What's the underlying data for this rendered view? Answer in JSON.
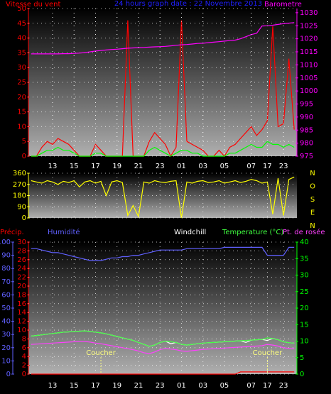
{
  "chart_data": [
    {
      "type": "line",
      "title": "24 hours graph date : 22 Novembre 2013",
      "ylabel": "Vitesse du vent",
      "y2label": "Barometre",
      "categories": [
        null,
        null,
        null,
        null,
        "13",
        null,
        null,
        null,
        "15",
        null,
        null,
        null,
        "17",
        null,
        null,
        null,
        "19",
        null,
        null,
        null,
        "21",
        null,
        null,
        null,
        "23",
        null,
        null,
        null,
        "01",
        null,
        null,
        null,
        "03",
        null,
        null,
        null,
        "05",
        null,
        null,
        null,
        null,
        "07",
        null,
        null,
        "17",
        null,
        null,
        "23",
        null,
        null
      ],
      "ylim": [
        0,
        50
      ],
      "yticks": [
        0,
        5,
        10,
        15,
        20,
        25,
        30,
        35,
        40,
        45,
        50
      ],
      "y2lim": [
        975,
        1031.6
      ],
      "y2ticks": [
        975,
        980,
        985,
        990,
        995,
        1000,
        1005,
        1010,
        1015,
        1020,
        1025,
        1030
      ],
      "grid": true,
      "axis_colors": {
        "y": "#ff0000",
        "y2": "#ff00ff"
      },
      "title_color": "#2020ff",
      "series": [
        {
          "color": "#ff0000",
          "values": [
            0,
            0,
            3,
            5,
            4,
            6,
            5,
            4,
            2,
            0,
            0,
            0,
            4,
            2,
            0,
            0,
            0,
            0,
            46,
            0,
            0,
            0,
            5,
            8,
            6,
            4,
            0,
            3,
            46,
            5,
            4,
            3,
            2,
            0,
            0,
            2,
            0,
            3,
            4,
            6,
            8,
            10,
            7,
            9,
            12,
            44,
            10,
            11,
            33,
            9
          ]
        },
        {
          "color": "#00ff00",
          "values": [
            0,
            0,
            1,
            2,
            2,
            3,
            2,
            2,
            1,
            0,
            0,
            0,
            1,
            1,
            0,
            0,
            0,
            0,
            0,
            0,
            0,
            0,
            2,
            3,
            2,
            1,
            0,
            1,
            2,
            2,
            1,
            1,
            0,
            0,
            0,
            0,
            0,
            1,
            1,
            2,
            3,
            4,
            3,
            3,
            5,
            4,
            4,
            3,
            4,
            3
          ]
        },
        {
          "color": "#ff00ff",
          "axis": "y2",
          "values": [
            1014.2,
            1014.2,
            1014.2,
            1014.2,
            1014.2,
            1014.2,
            1014.3,
            1014.3,
            1014.4,
            1014.5,
            1014.7,
            1015.0,
            1015.3,
            1015.5,
            1015.7,
            1015.9,
            1016.0,
            1016.2,
            1016.4,
            1016.5,
            1016.6,
            1016.7,
            1016.8,
            1016.9,
            1017.0,
            1017.1,
            1017.3,
            1017.5,
            1017.7,
            1017.8,
            1018.0,
            1018.2,
            1018.3,
            1018.5,
            1018.7,
            1018.9,
            1019.1,
            1019.3,
            1019.5,
            1020.0,
            1020.8,
            1021.6,
            1022.1,
            1024.9,
            1025.0,
            1025.2,
            1025.5,
            1025.8,
            1026.0,
            1026.2
          ]
        }
      ]
    },
    {
      "type": "line",
      "ylim": [
        0,
        360
      ],
      "yticks": [
        0,
        90,
        180,
        270,
        360
      ],
      "grid": true,
      "axis_colors": {
        "y": "#ffff00"
      },
      "compass": [
        "N",
        "O",
        "S",
        "E",
        "N"
      ],
      "series": [
        {
          "color": "#ffff00",
          "values": [
            300,
            290,
            280,
            300,
            290,
            270,
            295,
            285,
            300,
            250,
            290,
            300,
            280,
            295,
            180,
            290,
            300,
            285,
            20,
            100,
            10,
            290,
            280,
            300,
            290,
            285,
            295,
            300,
            0,
            290,
            280,
            295,
            300,
            285,
            290,
            300,
            280,
            290,
            300,
            285,
            295,
            310,
            300,
            280,
            290,
            30,
            320,
            20,
            310,
            330
          ]
        }
      ]
    },
    {
      "type": "line",
      "categories": [
        null,
        null,
        null,
        null,
        "13",
        null,
        null,
        null,
        "15",
        null,
        null,
        null,
        "17",
        null,
        null,
        null,
        "19",
        null,
        null,
        null,
        "21",
        null,
        null,
        null,
        "23",
        null,
        null,
        null,
        "01",
        null,
        null,
        null,
        "03",
        null,
        null,
        null,
        "05",
        null,
        null,
        null,
        null,
        "07",
        null,
        null,
        "17",
        null,
        null,
        "23",
        null,
        null
      ],
      "ylim": [
        0,
        30
      ],
      "yticks": [
        0,
        2,
        4,
        6,
        8,
        10,
        12,
        14,
        16,
        18,
        20,
        22,
        24,
        26,
        28,
        30
      ],
      "y3lim": [
        0,
        100
      ],
      "y3ticks": [
        0,
        10,
        20,
        30,
        40,
        50,
        60,
        70,
        80,
        90,
        100
      ],
      "y2lim": [
        0,
        40
      ],
      "y2ticks": [
        0,
        5,
        10,
        15,
        20,
        25,
        30,
        35,
        40
      ],
      "grid": true,
      "axis_colors": {
        "y": "#ff0000",
        "y2": "#00ff00",
        "y3": "#6060ff"
      },
      "annotations": [
        {
          "text": "Coucher",
          "x": 13
        },
        {
          "text": "Coucher",
          "x": 44
        }
      ],
      "series": [
        {
          "name": "Précip.",
          "color": "#ff0000",
          "values": [
            0,
            0,
            0,
            0,
            0,
            0,
            0,
            0,
            0,
            0,
            0,
            0,
            0,
            0,
            0,
            0,
            0,
            0,
            0,
            0,
            0,
            0,
            0,
            0,
            0,
            0,
            0,
            0,
            0,
            0,
            0,
            0,
            0,
            0,
            0,
            0,
            0,
            0,
            0,
            0.5,
            0.5,
            0.5,
            0.5,
            0.5,
            0.5,
            0.5,
            0.5,
            0.5,
            0.5,
            0.5
          ]
        },
        {
          "name": "Humidité",
          "color": "#6060ff",
          "axis": "y3",
          "values": [
            95,
            95,
            94,
            93,
            92,
            92,
            91,
            90,
            89,
            88,
            87,
            86,
            86,
            86,
            87,
            88,
            88,
            89,
            89,
            90,
            90,
            91,
            92,
            93,
            94,
            94,
            94,
            94,
            94,
            95,
            95,
            95,
            95,
            95,
            95,
            95,
            96,
            96,
            96,
            96,
            96,
            96,
            96,
            96,
            90,
            90,
            90,
            90,
            96,
            96
          ]
        },
        {
          "name": "Windchill",
          "color": "#ffffff",
          "axis": "y2",
          "values": [
            11.5,
            11.7,
            11.9,
            12.1,
            12.3,
            12.5,
            12.7,
            12.8,
            12.9,
            13.0,
            13.1,
            12.9,
            12.7,
            12.5,
            12.2,
            11.8,
            11.4,
            11.0,
            10.6,
            10.2,
            9.6,
            9.0,
            8.4,
            8.8,
            9.6,
            10.0,
            9.2,
            9.6,
            9.0,
            8.8,
            9.0,
            9.2,
            9.4,
            9.5,
            9.6,
            9.7,
            9.8,
            9.9,
            10.0,
            10.1,
            9.6,
            10.3,
            10.4,
            10.5,
            10.2,
            10.8,
            10.4,
            9.8,
            9.5,
            9.4
          ]
        },
        {
          "name": "Temperature (°C)",
          "color": "#40ff40",
          "axis": "y2",
          "values": [
            11.5,
            11.7,
            11.9,
            12.1,
            12.3,
            12.5,
            12.7,
            12.8,
            12.9,
            13.0,
            13.1,
            12.9,
            12.7,
            12.5,
            12.2,
            11.8,
            11.4,
            11.0,
            10.6,
            10.2,
            9.6,
            9.0,
            8.4,
            8.8,
            9.6,
            10.0,
            9.8,
            9.6,
            9.0,
            8.8,
            9.0,
            9.2,
            9.4,
            9.5,
            9.6,
            9.7,
            9.8,
            9.9,
            10.0,
            10.1,
            10.2,
            10.3,
            10.4,
            10.5,
            11.0,
            10.8,
            10.4,
            9.8,
            9.5,
            9.4
          ]
        },
        {
          "name": "Pt. de rosée",
          "color": "#ff40ff",
          "axis": "y2",
          "values": [
            9.0,
            9.1,
            9.2,
            9.3,
            9.4,
            9.5,
            9.6,
            9.7,
            9.8,
            9.9,
            9.9,
            9.7,
            9.4,
            9.2,
            8.9,
            8.6,
            8.3,
            8.0,
            7.7,
            7.4,
            7.0,
            6.5,
            6.2,
            6.7,
            7.4,
            7.8,
            7.6,
            7.4,
            7.0,
            6.9,
            7.1,
            7.3,
            7.5,
            7.6,
            7.7,
            7.8,
            7.9,
            8.0,
            8.1,
            8.2,
            8.3,
            8.4,
            8.5,
            8.6,
            9.0,
            8.8,
            8.5,
            8.0,
            7.8,
            7.7
          ]
        }
      ]
    }
  ]
}
